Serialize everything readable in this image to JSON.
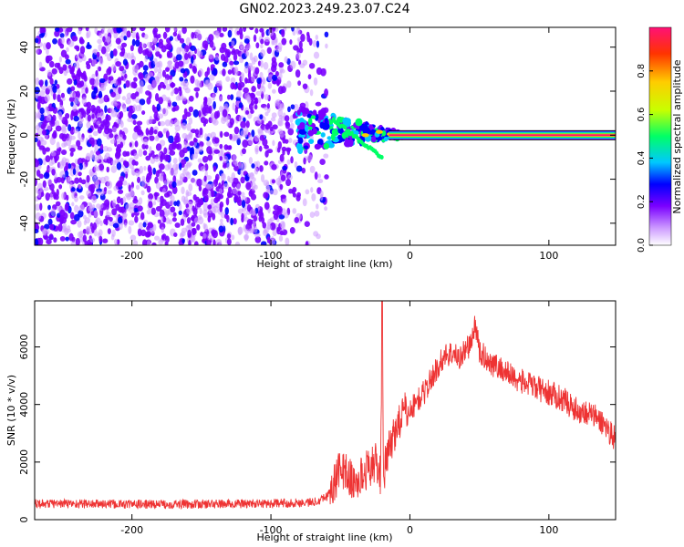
{
  "title": "GN02.2023.249.23.07.C24",
  "colors": {
    "snr_line": "#ee3333",
    "axis": "#000000",
    "colormap": [
      "#ffffff",
      "#cc99ff",
      "#7a00ff",
      "#0000ff",
      "#00c8ff",
      "#00ff66",
      "#c8ff00",
      "#ffcc00",
      "#ff3300",
      "#ff1177"
    ]
  },
  "chart_data": [
    {
      "type": "heatmap",
      "title": "GN02.2023.249.23.07.C24",
      "xlabel": "Height of straight line (km)",
      "ylabel": "Frequency (Hz)",
      "xlim": [
        -270,
        148
      ],
      "ylim": [
        -50,
        49
      ],
      "xticks": [
        -200,
        -100,
        0,
        100
      ],
      "yticks": [
        -40,
        -20,
        0,
        20,
        40
      ],
      "colorbar": {
        "label": "Normalized spectral amplitude",
        "range": [
          0.0,
          1.0
        ],
        "ticks": [
          0.0,
          0.2,
          0.4,
          0.6,
          0.8
        ]
      },
      "features": [
        {
          "region": "noise",
          "x_range": [
            -270,
            -75
          ],
          "y_range": [
            -50,
            49
          ],
          "amplitude": "0.0-0.2"
        },
        {
          "region": "chirp",
          "x_range": [
            -80,
            -5
          ],
          "y_range": [
            -8,
            12
          ],
          "amplitude": "0.2-0.6"
        },
        {
          "region": "carrier",
          "x_range": [
            -5,
            148
          ],
          "y_center": 0,
          "amplitude": "0.9-1.0"
        }
      ]
    },
    {
      "type": "line",
      "xlabel": "Height of straight line (km)",
      "ylabel": "SNR (10 * v/v)",
      "xlim": [
        -270,
        148
      ],
      "ylim": [
        0,
        7600
      ],
      "xticks": [
        -200,
        -100,
        0,
        100
      ],
      "yticks": [
        0,
        2000,
        4000,
        6000
      ],
      "series": [
        {
          "x": [
            -270,
            -250,
            -200,
            -150,
            -100,
            -70,
            -60,
            -55,
            -50,
            -45,
            -40,
            -35,
            -30,
            -25,
            -21,
            -20,
            -19,
            -15,
            -10,
            -5,
            0,
            10,
            20,
            25,
            30,
            35,
            40,
            45,
            47,
            50,
            55,
            60,
            70,
            80,
            90,
            100,
            110,
            120,
            130,
            140,
            148
          ],
          "y": [
            550,
            560,
            530,
            540,
            560,
            600,
            800,
            1200,
            1800,
            1600,
            1200,
            1500,
            1800,
            2000,
            1500,
            7600,
            1600,
            2400,
            3200,
            3700,
            3800,
            4400,
            5300,
            5700,
            5800,
            5600,
            5900,
            6200,
            6900,
            5800,
            5600,
            5400,
            5100,
            4800,
            4600,
            4400,
            4200,
            3800,
            3700,
            3300,
            2800
          ]
        }
      ]
    }
  ]
}
